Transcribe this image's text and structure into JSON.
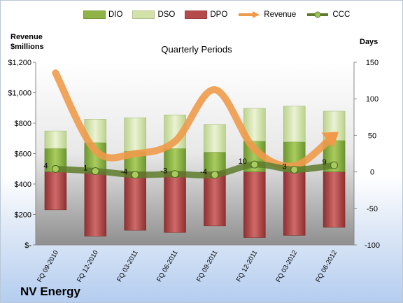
{
  "company": "NV Energy",
  "chart_data": {
    "type": "bar",
    "title": "Quarterly Periods",
    "categories": [
      "FQ 09-2010",
      "FQ 12-2010",
      "FQ 03-2011",
      "FQ 06-2011",
      "FQ 09-2011",
      "FQ 12-2011",
      "FQ 03-2012",
      "FQ 06-2012"
    ],
    "left_axis": {
      "label": "Revenue\n$millions",
      "range": [
        0,
        1200
      ],
      "ticks": [
        "$-",
        "$200",
        "$400",
        "$600",
        "$800",
        "$1,000",
        "$1,200"
      ]
    },
    "right_axis": {
      "label": "Days",
      "range": [
        -100,
        150
      ],
      "ticks": [
        "-100",
        "-50",
        "0",
        "50",
        "100",
        "150"
      ]
    },
    "series": [
      {
        "name": "DIO",
        "axis": "right",
        "kind": "stacked-bar",
        "values": [
          32,
          40,
          28,
          32,
          27,
          42,
          41,
          43
        ]
      },
      {
        "name": "DSO",
        "axis": "right",
        "kind": "stacked-bar",
        "values": [
          24,
          32,
          46,
          46,
          38,
          45,
          49,
          40
        ]
      },
      {
        "name": "DPO",
        "axis": "right",
        "kind": "negative-bar",
        "values": [
          -52,
          -88,
          -80,
          -83,
          -74,
          -90,
          -87,
          -76
        ]
      },
      {
        "name": "Revenue",
        "axis": "left",
        "kind": "line",
        "values": [
          1130,
          620,
          600,
          680,
          1020,
          630,
          520,
          720
        ]
      },
      {
        "name": "CCC",
        "axis": "right",
        "kind": "line",
        "values": [
          4,
          1,
          -4,
          -3,
          -4,
          10,
          3,
          9
        ]
      }
    ],
    "ccc_labels": [
      "4",
      "1",
      "-4",
      "-3",
      "-4",
      "10",
      "3",
      "9"
    ],
    "legend_position": "top",
    "colors": {
      "DIO": "#8fb347",
      "DSO": "#d2e2a8",
      "DPO": "#b54a4a",
      "Revenue": "#f09a4a",
      "CCC": "#5e7d2c"
    }
  }
}
